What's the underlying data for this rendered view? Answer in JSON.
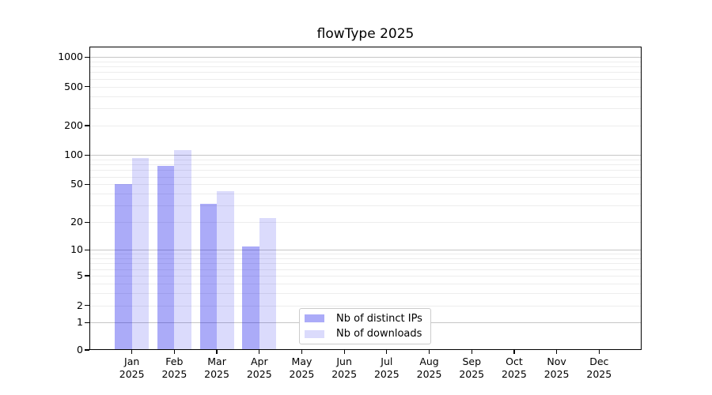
{
  "chart_data": {
    "type": "bar",
    "title": "flowType 2025",
    "categories": [
      "Jan",
      "Feb",
      "Mar",
      "Apr",
      "May",
      "Jun",
      "Jul",
      "Aug",
      "Sep",
      "Oct",
      "Nov",
      "Dec"
    ],
    "x_year_label": "2025",
    "series": [
      {
        "name": "Nb of distinct IPs",
        "fill": "rgba(8,8,235,0.34)",
        "values": [
          50,
          77,
          31,
          11,
          null,
          null,
          null,
          null,
          null,
          null,
          null,
          null
        ]
      },
      {
        "name": "Nb of downloads",
        "fill": "rgba(8,8,235,0.145)",
        "values": [
          94,
          112,
          42,
          22,
          null,
          null,
          null,
          null,
          null,
          null,
          null,
          null
        ]
      }
    ],
    "xlabel": "",
    "ylabel": "",
    "yscale": "log1p",
    "ylim": [
      0,
      1275
    ],
    "yticks": [
      0,
      1,
      2,
      5,
      10,
      20,
      50,
      100,
      200,
      500,
      1000
    ],
    "grid": {
      "show": true,
      "major": [
        1,
        10,
        100,
        1000
      ],
      "minor_subs": [
        2,
        3,
        4,
        5,
        6,
        7,
        8,
        9
      ],
      "minor_decades": [
        1,
        10,
        100
      ],
      "major_color": "#c6c6c6",
      "minor_color": "#ededed"
    },
    "legend": {
      "location": "lower center"
    }
  }
}
